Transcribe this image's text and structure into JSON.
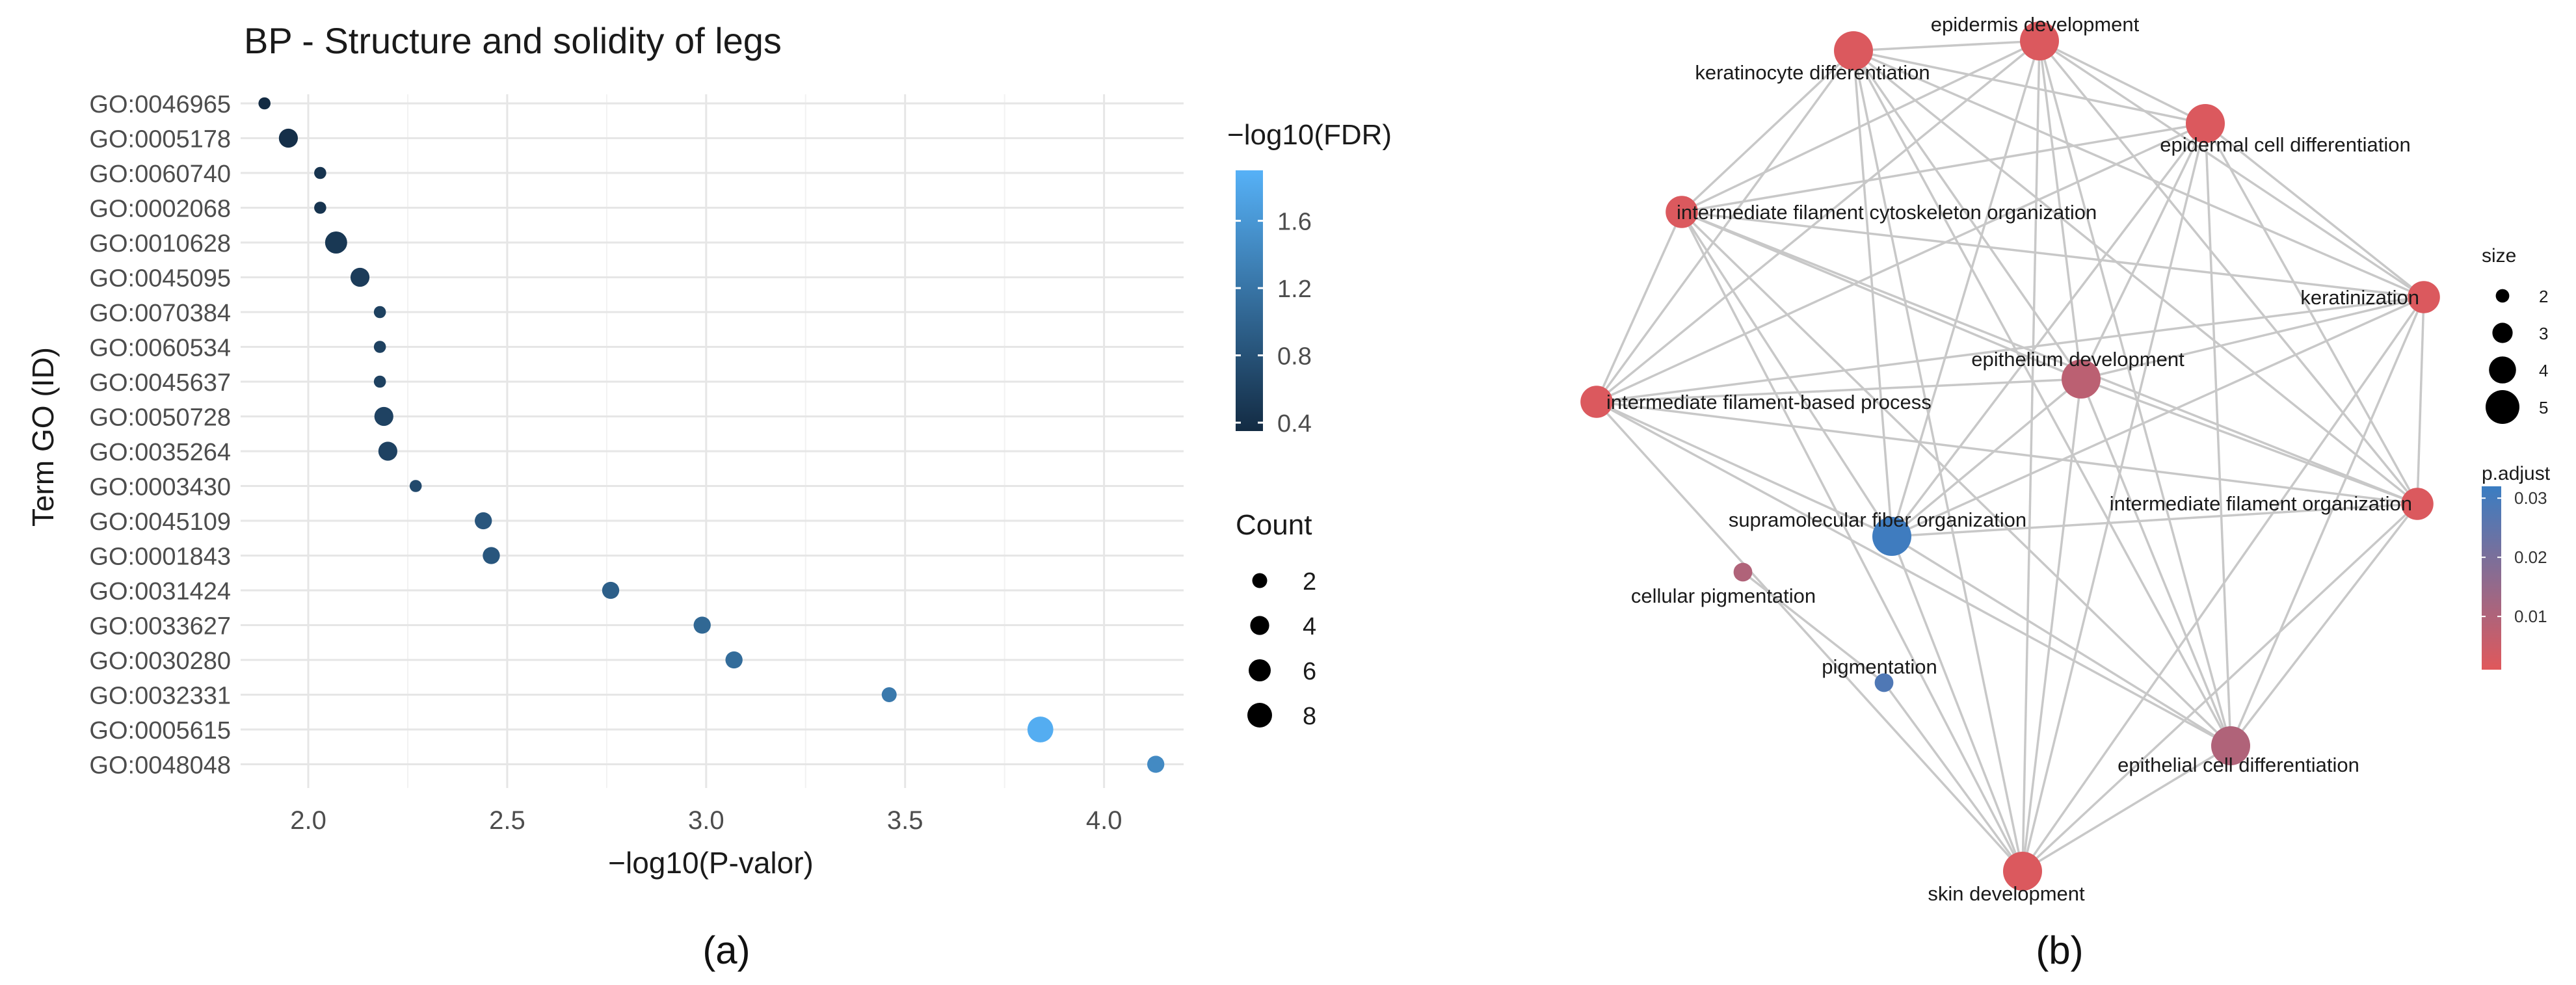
{
  "chart_data": [
    {
      "type": "scatter",
      "panel_label": "(a)",
      "title": "BP - Structure and solidity of legs",
      "xlabel": "−log10(P-valor)",
      "ylabel": "Term GO (ID)",
      "xlim": [
        1.83,
        4.2
      ],
      "xticks": [
        2.0,
        2.5,
        3.0,
        3.5,
        4.0
      ],
      "xtick_labels": [
        "2.0",
        "2.5",
        "3.0",
        "3.5",
        "4.0"
      ],
      "grid": true,
      "color_legend": {
        "title": "−log10(FDR)",
        "range": [
          0.35,
          1.9
        ],
        "ticks": [
          0.4,
          0.8,
          1.2,
          1.6
        ],
        "tick_labels": [
          "0.4",
          "0.8",
          "1.2",
          "1.6"
        ],
        "low_color": "#132B43",
        "high_color": "#56B1F7"
      },
      "size_legend": {
        "title": "Count",
        "values": [
          2,
          4,
          6,
          8
        ],
        "labels": [
          "2",
          "4",
          "6",
          "8"
        ]
      },
      "points": [
        {
          "term": "GO:0046965",
          "x": 1.89,
          "count": 1,
          "fdr": 0.35
        },
        {
          "term": "GO:0005178",
          "x": 1.95,
          "count": 4,
          "fdr": 0.4
        },
        {
          "term": "GO:0060740",
          "x": 2.03,
          "count": 1,
          "fdr": 0.45
        },
        {
          "term": "GO:0002068",
          "x": 2.03,
          "count": 1,
          "fdr": 0.45
        },
        {
          "term": "GO:0010628",
          "x": 2.07,
          "count": 6,
          "fdr": 0.5
        },
        {
          "term": "GO:0045095",
          "x": 2.13,
          "count": 4,
          "fdr": 0.55
        },
        {
          "term": "GO:0070384",
          "x": 2.18,
          "count": 1,
          "fdr": 0.6
        },
        {
          "term": "GO:0060534",
          "x": 2.18,
          "count": 1,
          "fdr": 0.6
        },
        {
          "term": "GO:0045637",
          "x": 2.18,
          "count": 1,
          "fdr": 0.6
        },
        {
          "term": "GO:0050728",
          "x": 2.19,
          "count": 4,
          "fdr": 0.62
        },
        {
          "term": "GO:0035264",
          "x": 2.2,
          "count": 4,
          "fdr": 0.62
        },
        {
          "term": "GO:0003430",
          "x": 2.27,
          "count": 1,
          "fdr": 0.7
        },
        {
          "term": "GO:0045109",
          "x": 2.44,
          "count": 3,
          "fdr": 0.85
        },
        {
          "term": "GO:0001843",
          "x": 2.46,
          "count": 3,
          "fdr": 0.85
        },
        {
          "term": "GO:0031424",
          "x": 2.76,
          "count": 3,
          "fdr": 0.95
        },
        {
          "term": "GO:0033627",
          "x": 2.99,
          "count": 3,
          "fdr": 1.05
        },
        {
          "term": "GO:0030280",
          "x": 3.07,
          "count": 3,
          "fdr": 1.1
        },
        {
          "term": "GO:0032331",
          "x": 3.46,
          "count": 2,
          "fdr": 1.25
        },
        {
          "term": "GO:0005615",
          "x": 3.84,
          "count": 9,
          "fdr": 1.85
        },
        {
          "term": "GO:0048048",
          "x": 4.13,
          "count": 3,
          "fdr": 1.45
        }
      ]
    },
    {
      "type": "network",
      "panel_label": "(b)",
      "size_legend": {
        "title": "size",
        "values": [
          2,
          3,
          4,
          5
        ],
        "labels": [
          "2",
          "3",
          "4",
          "5"
        ]
      },
      "color_legend": {
        "title": "p.adjust",
        "ticks": [
          0.01,
          0.02,
          0.03
        ],
        "tick_labels": [
          "0.01",
          "0.02",
          "0.03"
        ],
        "range": [
          0.001,
          0.032
        ],
        "low_color": "#E0585B",
        "high_color": "#3A7DC2"
      },
      "nodes": [
        {
          "id": "epid_dev",
          "label": "epidermis development",
          "size": 5,
          "p_adjust": 0.002
        },
        {
          "id": "kerat_diff",
          "label": "keratinocyte differentiation",
          "size": 5,
          "p_adjust": 0.002
        },
        {
          "id": "epid_cell",
          "label": "epidermal cell differentiation",
          "size": 5,
          "p_adjust": 0.002
        },
        {
          "id": "if_cyto",
          "label": "intermediate filament cytoskeleton organization",
          "size": 4,
          "p_adjust": 0.002
        },
        {
          "id": "keratin",
          "label": "keratinization",
          "size": 4,
          "p_adjust": 0.002
        },
        {
          "id": "epith_dev",
          "label": "epithelium development",
          "size": 5,
          "p_adjust": 0.008
        },
        {
          "id": "if_based",
          "label": "intermediate filament-based process",
          "size": 4,
          "p_adjust": 0.002
        },
        {
          "id": "if_org",
          "label": "intermediate filament organization",
          "size": 4,
          "p_adjust": 0.002
        },
        {
          "id": "supra",
          "label": "supramolecular fiber organization",
          "size": 5,
          "p_adjust": 0.031
        },
        {
          "id": "cell_pig",
          "label": "cellular pigmentation",
          "size": 2,
          "p_adjust": 0.01
        },
        {
          "id": "pigm",
          "label": "pigmentation",
          "size": 2,
          "p_adjust": 0.028
        },
        {
          "id": "epith_cell",
          "label": "epithelial cell differentiation",
          "size": 5,
          "p_adjust": 0.01
        },
        {
          "id": "skin_dev",
          "label": "skin development",
          "size": 5,
          "p_adjust": 0.002
        }
      ],
      "edges": [
        [
          "epid_dev",
          "kerat_diff"
        ],
        [
          "epid_dev",
          "epid_cell"
        ],
        [
          "epid_dev",
          "if_cyto"
        ],
        [
          "epid_dev",
          "keratin"
        ],
        [
          "epid_dev",
          "epith_dev"
        ],
        [
          "epid_dev",
          "if_based"
        ],
        [
          "epid_dev",
          "if_org"
        ],
        [
          "epid_dev",
          "supra"
        ],
        [
          "epid_dev",
          "epith_cell"
        ],
        [
          "epid_dev",
          "skin_dev"
        ],
        [
          "kerat_diff",
          "epid_cell"
        ],
        [
          "kerat_diff",
          "if_cyto"
        ],
        [
          "kerat_diff",
          "keratin"
        ],
        [
          "kerat_diff",
          "epith_dev"
        ],
        [
          "kerat_diff",
          "if_based"
        ],
        [
          "kerat_diff",
          "if_org"
        ],
        [
          "kerat_diff",
          "supra"
        ],
        [
          "kerat_diff",
          "epith_cell"
        ],
        [
          "kerat_diff",
          "skin_dev"
        ],
        [
          "epid_cell",
          "if_cyto"
        ],
        [
          "epid_cell",
          "keratin"
        ],
        [
          "epid_cell",
          "epith_dev"
        ],
        [
          "epid_cell",
          "if_based"
        ],
        [
          "epid_cell",
          "if_org"
        ],
        [
          "epid_cell",
          "supra"
        ],
        [
          "epid_cell",
          "epith_cell"
        ],
        [
          "epid_cell",
          "skin_dev"
        ],
        [
          "if_cyto",
          "keratin"
        ],
        [
          "if_cyto",
          "epith_dev"
        ],
        [
          "if_cyto",
          "if_based"
        ],
        [
          "if_cyto",
          "if_org"
        ],
        [
          "if_cyto",
          "supra"
        ],
        [
          "if_cyto",
          "epith_cell"
        ],
        [
          "if_cyto",
          "skin_dev"
        ],
        [
          "keratin",
          "epith_dev"
        ],
        [
          "keratin",
          "if_based"
        ],
        [
          "keratin",
          "if_org"
        ],
        [
          "keratin",
          "supra"
        ],
        [
          "keratin",
          "epith_cell"
        ],
        [
          "keratin",
          "skin_dev"
        ],
        [
          "epith_dev",
          "if_based"
        ],
        [
          "epith_dev",
          "if_org"
        ],
        [
          "epith_dev",
          "supra"
        ],
        [
          "epith_dev",
          "epith_cell"
        ],
        [
          "epith_dev",
          "skin_dev"
        ],
        [
          "if_based",
          "if_org"
        ],
        [
          "if_based",
          "supra"
        ],
        [
          "if_based",
          "epith_cell"
        ],
        [
          "if_based",
          "skin_dev"
        ],
        [
          "if_org",
          "supra"
        ],
        [
          "if_org",
          "epith_cell"
        ],
        [
          "if_org",
          "skin_dev"
        ],
        [
          "supra",
          "epith_cell"
        ],
        [
          "supra",
          "skin_dev"
        ],
        [
          "cell_pig",
          "pigm"
        ],
        [
          "pigm",
          "skin_dev"
        ],
        [
          "epith_cell",
          "skin_dev"
        ]
      ]
    }
  ]
}
